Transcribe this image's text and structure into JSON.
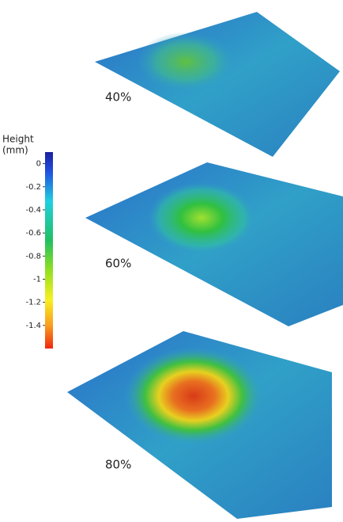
{
  "colorbar": {
    "title": [
      "Height",
      "(mm)"
    ],
    "ylim": [
      -1.6,
      0.1
    ],
    "ticks": [
      0,
      -0.2,
      -0.4,
      -0.6,
      -0.8,
      -1,
      -1.2,
      -1.4
    ]
  },
  "panels": [
    {
      "label": "40%"
    },
    {
      "label": "60%"
    },
    {
      "label": "80%"
    }
  ]
}
